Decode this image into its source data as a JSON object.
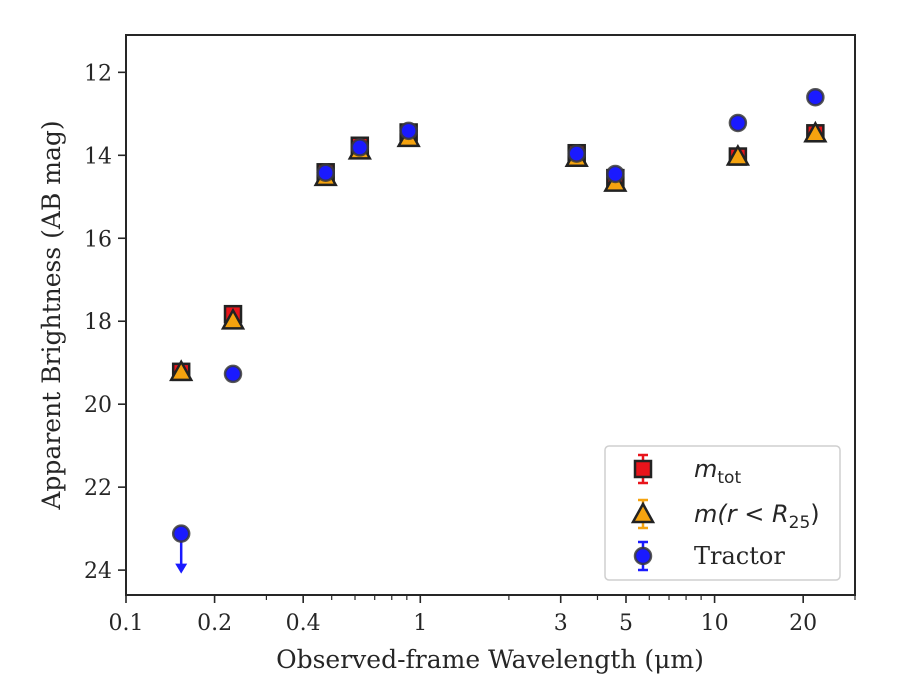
{
  "chart_data": {
    "type": "scatter",
    "xlabel": "Observed-frame Wavelength (μm)",
    "ylabel": "Apparent Brightness (AB mag)",
    "x_scale": "log",
    "xlim": [
      0.1,
      30
    ],
    "ylim": [
      24.6,
      11.1
    ],
    "y_inverted": true,
    "grid": false,
    "legend_position": "lower-right",
    "x_ticks": [
      {
        "value": 0.1,
        "label": "0.1"
      },
      {
        "value": 0.2,
        "label": "0.2"
      },
      {
        "value": 0.4,
        "label": "0.4"
      },
      {
        "value": 1,
        "label": "1"
      },
      {
        "value": 3,
        "label": "3"
      },
      {
        "value": 5,
        "label": "5"
      },
      {
        "value": 10,
        "label": "10"
      },
      {
        "value": 20,
        "label": "20"
      }
    ],
    "y_ticks": [
      {
        "value": 12,
        "label": "12"
      },
      {
        "value": 14,
        "label": "14"
      },
      {
        "value": 16,
        "label": "16"
      },
      {
        "value": 18,
        "label": "18"
      },
      {
        "value": 20,
        "label": "20"
      },
      {
        "value": 22,
        "label": "22"
      },
      {
        "value": 24,
        "label": "24"
      }
    ],
    "legend": [
      {
        "label_main": "m",
        "label_sub": "tot",
        "label_rest": ""
      },
      {
        "label_main": "m(r < R",
        "label_sub": "25",
        "label_rest": ")"
      },
      {
        "label_main": "Tractor",
        "label_sub": "",
        "label_rest": ""
      }
    ],
    "series": [
      {
        "marker": "square",
        "color": "#e8141b",
        "points": [
          {
            "x": 0.154,
            "y": 19.22
          },
          {
            "x": 0.231,
            "y": 17.83
          },
          {
            "x": 0.477,
            "y": 14.41
          },
          {
            "x": 0.623,
            "y": 13.77
          },
          {
            "x": 0.913,
            "y": 13.45
          },
          {
            "x": 3.4,
            "y": 13.95
          },
          {
            "x": 4.6,
            "y": 14.55
          },
          {
            "x": 12.0,
            "y": 14.03
          },
          {
            "x": 22.0,
            "y": 13.47
          }
        ]
      },
      {
        "marker": "triangle",
        "color": "#f5a30f",
        "points": [
          {
            "x": 0.154,
            "y": 19.22
          },
          {
            "x": 0.231,
            "y": 17.98
          },
          {
            "x": 0.477,
            "y": 14.52
          },
          {
            "x": 0.623,
            "y": 13.88
          },
          {
            "x": 0.913,
            "y": 13.58
          },
          {
            "x": 3.4,
            "y": 14.06
          },
          {
            "x": 4.6,
            "y": 14.66
          },
          {
            "x": 12.0,
            "y": 14.03
          },
          {
            "x": 22.0,
            "y": 13.47
          }
        ]
      },
      {
        "marker": "circle",
        "color": "#1a1aff",
        "points": [
          {
            "x": 0.154,
            "y": 23.12,
            "upper_limit": true
          },
          {
            "x": 0.231,
            "y": 19.27
          },
          {
            "x": 0.477,
            "y": 14.42
          },
          {
            "x": 0.623,
            "y": 13.81
          },
          {
            "x": 0.913,
            "y": 13.41
          },
          {
            "x": 3.4,
            "y": 13.96
          },
          {
            "x": 4.6,
            "y": 14.45
          },
          {
            "x": 12.0,
            "y": 13.22
          },
          {
            "x": 22.0,
            "y": 12.6
          }
        ]
      }
    ]
  }
}
